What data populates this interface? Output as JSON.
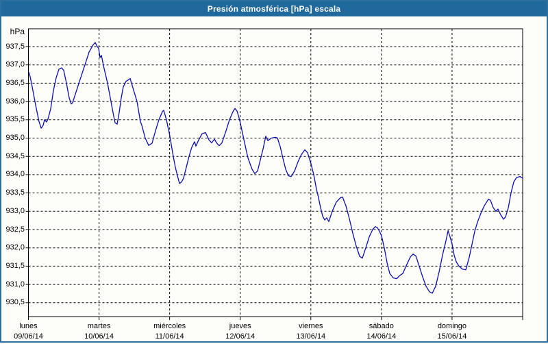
{
  "title": "Presión atmosférica [hPa] escala",
  "y_axis": {
    "unit_label": "hPa",
    "tick_labels": [
      "937,5",
      "937,0",
      "936,5",
      "936,0",
      "935,5",
      "935,0",
      "934,5",
      "934,0",
      "933,5",
      "933,0",
      "932,5",
      "932,0",
      "931,5",
      "931,0",
      "930,5"
    ],
    "tick_values": [
      937.5,
      937.0,
      936.5,
      936.0,
      935.5,
      935.0,
      934.5,
      934.0,
      933.5,
      933.0,
      932.5,
      932.0,
      931.5,
      931.0,
      930.5
    ]
  },
  "x_axis": {
    "days": [
      {
        "name": "lunes",
        "date": "09/06/14"
      },
      {
        "name": "martes",
        "date": "10/06/14"
      },
      {
        "name": "miércoles",
        "date": "11/06/14"
      },
      {
        "name": "jueves",
        "date": "12/06/14"
      },
      {
        "name": "viernes",
        "date": "13/06/14"
      },
      {
        "name": "sábado",
        "date": "14/06/14"
      },
      {
        "name": "domingo",
        "date": "15/06/14"
      }
    ]
  },
  "colors": {
    "title_bar_bg": "#1F699C",
    "title_text": "#FFFFFF",
    "frame_border": "#2F6F9F",
    "line": "#0B0BB2",
    "grid": "#000000",
    "background": "#FDFDFA"
  },
  "chart_data": {
    "type": "line",
    "title": "Presión atmosférica [hPa] escala",
    "xlabel": "",
    "ylabel": "hPa",
    "ylim": [
      930.12,
      937.99
    ],
    "xlim_days": [
      0,
      7
    ],
    "grid": "dashed both axes, 0.5 hPa steps and daily verticals",
    "legend_position": "none",
    "x_categories": [
      "lunes 09/06/14",
      "martes 10/06/14",
      "miércoles 11/06/14",
      "jueves 12/06/14",
      "viernes 13/06/14",
      "sábado 14/06/14",
      "domingo 15/06/14"
    ],
    "series": [
      {
        "name": "Presión atmosférica [hPa]",
        "x_unit": "days since 09/06/14 00:00",
        "points": [
          [
            0.005,
            936.8
          ],
          [
            0.024,
            936.68
          ],
          [
            0.044,
            936.5
          ],
          [
            0.102,
            935.9
          ],
          [
            0.15,
            935.45
          ],
          [
            0.18,
            935.27
          ],
          [
            0.209,
            935.35
          ],
          [
            0.228,
            935.5
          ],
          [
            0.257,
            935.44
          ],
          [
            0.277,
            935.52
          ],
          [
            0.315,
            935.8
          ],
          [
            0.354,
            936.3
          ],
          [
            0.393,
            936.65
          ],
          [
            0.432,
            936.88
          ],
          [
            0.471,
            936.92
          ],
          [
            0.5,
            936.85
          ],
          [
            0.538,
            936.5
          ],
          [
            0.577,
            936.1
          ],
          [
            0.606,
            935.93
          ],
          [
            0.626,
            935.97
          ],
          [
            0.665,
            936.2
          ],
          [
            0.732,
            936.6
          ],
          [
            0.8,
            937.0
          ],
          [
            0.859,
            937.35
          ],
          [
            0.917,
            937.55
          ],
          [
            0.946,
            937.61
          ],
          [
            0.975,
            937.5
          ],
          [
            0.994,
            937.45
          ],
          [
            1.014,
            937.2
          ],
          [
            1.033,
            937.26
          ],
          [
            1.072,
            936.9
          ],
          [
            1.121,
            936.5
          ],
          [
            1.169,
            936.0
          ],
          [
            1.208,
            935.6
          ],
          [
            1.227,
            935.42
          ],
          [
            1.256,
            935.38
          ],
          [
            1.286,
            935.7
          ],
          [
            1.315,
            936.1
          ],
          [
            1.344,
            936.4
          ],
          [
            1.383,
            936.55
          ],
          [
            1.421,
            936.6
          ],
          [
            1.441,
            936.63
          ],
          [
            1.46,
            936.5
          ],
          [
            1.499,
            936.25
          ],
          [
            1.538,
            936.0
          ],
          [
            1.586,
            935.45
          ],
          [
            1.606,
            935.35
          ],
          [
            1.654,
            935.0
          ],
          [
            1.703,
            934.8
          ],
          [
            1.751,
            934.86
          ],
          [
            1.8,
            935.2
          ],
          [
            1.848,
            935.5
          ],
          [
            1.897,
            935.72
          ],
          [
            1.916,
            935.76
          ],
          [
            1.955,
            935.5
          ],
          [
            2.003,
            935.05
          ],
          [
            2.042,
            934.6
          ],
          [
            2.081,
            934.2
          ],
          [
            2.12,
            933.9
          ],
          [
            2.139,
            933.76
          ],
          [
            2.168,
            933.8
          ],
          [
            2.197,
            933.9
          ],
          [
            2.236,
            934.2
          ],
          [
            2.275,
            934.5
          ],
          [
            2.314,
            934.75
          ],
          [
            2.353,
            934.9
          ],
          [
            2.372,
            934.78
          ],
          [
            2.411,
            934.95
          ],
          [
            2.46,
            935.12
          ],
          [
            2.508,
            935.15
          ],
          [
            2.557,
            934.95
          ],
          [
            2.595,
            934.87
          ],
          [
            2.634,
            934.97
          ],
          [
            2.673,
            934.85
          ],
          [
            2.702,
            934.79
          ],
          [
            2.741,
            934.87
          ],
          [
            2.799,
            935.2
          ],
          [
            2.848,
            935.5
          ],
          [
            2.896,
            935.72
          ],
          [
            2.925,
            935.81
          ],
          [
            2.954,
            935.74
          ],
          [
            2.974,
            935.62
          ],
          [
            3.003,
            935.4
          ],
          [
            3.042,
            935.05
          ],
          [
            3.08,
            934.7
          ],
          [
            3.11,
            934.45
          ],
          [
            3.139,
            934.3
          ],
          [
            3.168,
            934.15
          ],
          [
            3.206,
            934.03
          ],
          [
            3.245,
            934.1
          ],
          [
            3.284,
            934.4
          ],
          [
            3.323,
            934.7
          ],
          [
            3.362,
            935.05
          ],
          [
            3.391,
            934.93
          ],
          [
            3.439,
            935.0
          ],
          [
            3.498,
            935.02
          ],
          [
            3.527,
            935.0
          ],
          [
            3.565,
            934.78
          ],
          [
            3.604,
            934.45
          ],
          [
            3.643,
            934.15
          ],
          [
            3.682,
            933.97
          ],
          [
            3.721,
            933.95
          ],
          [
            3.769,
            934.1
          ],
          [
            3.818,
            934.35
          ],
          [
            3.866,
            934.55
          ],
          [
            3.915,
            934.68
          ],
          [
            3.954,
            934.6
          ],
          [
            4.002,
            934.3
          ],
          [
            4.041,
            934.0
          ],
          [
            4.08,
            933.6
          ],
          [
            4.099,
            933.45
          ],
          [
            4.138,
            933.1
          ],
          [
            4.167,
            932.87
          ],
          [
            4.196,
            932.76
          ],
          [
            4.225,
            932.82
          ],
          [
            4.254,
            932.72
          ],
          [
            4.303,
            933.0
          ],
          [
            4.361,
            933.25
          ],
          [
            4.419,
            933.37
          ],
          [
            4.448,
            933.39
          ],
          [
            4.497,
            933.15
          ],
          [
            4.545,
            932.8
          ],
          [
            4.594,
            932.4
          ],
          [
            4.642,
            932.05
          ],
          [
            4.691,
            931.77
          ],
          [
            4.73,
            931.72
          ],
          [
            4.778,
            932.0
          ],
          [
            4.827,
            932.3
          ],
          [
            4.875,
            932.5
          ],
          [
            4.914,
            932.58
          ],
          [
            4.943,
            932.55
          ],
          [
            4.972,
            932.45
          ],
          [
            5.001,
            932.33
          ],
          [
            5.04,
            932.0
          ],
          [
            5.079,
            931.6
          ],
          [
            5.118,
            931.3
          ],
          [
            5.166,
            931.18
          ],
          [
            5.215,
            931.16
          ],
          [
            5.263,
            931.25
          ],
          [
            5.302,
            931.3
          ],
          [
            5.36,
            931.55
          ],
          [
            5.409,
            931.75
          ],
          [
            5.448,
            931.83
          ],
          [
            5.487,
            931.78
          ],
          [
            5.535,
            931.5
          ],
          [
            5.584,
            931.2
          ],
          [
            5.632,
            930.95
          ],
          [
            5.681,
            930.8
          ],
          [
            5.72,
            930.76
          ],
          [
            5.768,
            930.95
          ],
          [
            5.817,
            931.35
          ],
          [
            5.865,
            931.8
          ],
          [
            5.914,
            932.2
          ],
          [
            5.943,
            932.47
          ],
          [
            5.972,
            932.3
          ],
          [
            6.001,
            932.1
          ],
          [
            6.03,
            931.8
          ],
          [
            6.059,
            931.62
          ],
          [
            6.098,
            931.5
          ],
          [
            6.147,
            931.42
          ],
          [
            6.195,
            931.4
          ],
          [
            6.244,
            931.75
          ],
          [
            6.283,
            932.1
          ],
          [
            6.321,
            932.45
          ],
          [
            6.36,
            932.7
          ],
          [
            6.409,
            932.95
          ],
          [
            6.457,
            933.15
          ],
          [
            6.515,
            933.33
          ],
          [
            6.544,
            933.3
          ],
          [
            6.583,
            933.1
          ],
          [
            6.622,
            933.0
          ],
          [
            6.651,
            933.06
          ],
          [
            6.69,
            932.9
          ],
          [
            6.729,
            932.78
          ],
          [
            6.758,
            932.85
          ],
          [
            6.797,
            933.1
          ],
          [
            6.835,
            933.5
          ],
          [
            6.874,
            933.8
          ],
          [
            6.913,
            933.92
          ],
          [
            6.961,
            933.95
          ],
          [
            7.0,
            933.9
          ]
        ]
      }
    ]
  }
}
